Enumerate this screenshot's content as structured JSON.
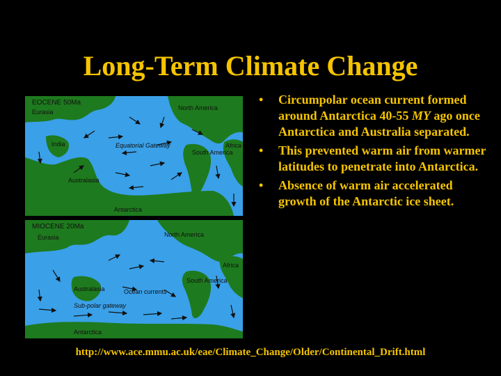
{
  "slide": {
    "title": "Long-Term Climate Change",
    "bullets": [
      {
        "before": "Circumpolar ocean current formed around Antarctica 40-55 ",
        "emph": "MY",
        "after": " ago once Antarctica and Australia separated."
      },
      {
        "before": "This prevented warm air from warmer latitudes to penetrate into Antarctica.",
        "emph": "",
        "after": ""
      },
      {
        "before": "Absence of warm air accelerated growth of the Antarctic ice sheet.",
        "emph": "",
        "after": ""
      }
    ],
    "source_url": "http://www.ace.mmu.ac.uk/eae/Climate_Change/Older/Continental_Drift.html"
  },
  "maps": {
    "eocene": {
      "title": "EOCENE 50Ma",
      "labels": {
        "eurasia": "Eurasia",
        "north_america": "North America",
        "india": "India",
        "gateway": "Equatorial Gateway",
        "south_america": "South America",
        "africa": "Africa",
        "australasia": "Australasia",
        "antarctica": "Antarctica"
      }
    },
    "miocene": {
      "title": "MIOCENE 20Ma",
      "labels": {
        "eurasia": "Eurasia",
        "north_america": "North America",
        "africa": "Africa",
        "australasia": "Australasia",
        "currents": "Ocean currents",
        "south_america": "South America",
        "gateway": "Sub-polar gateway",
        "antarctica": "Antarctica"
      }
    }
  },
  "colors": {
    "background": "#000000",
    "text": "#f5c400",
    "ocean": "#3aa0e8",
    "land": "#1e7a1e"
  }
}
